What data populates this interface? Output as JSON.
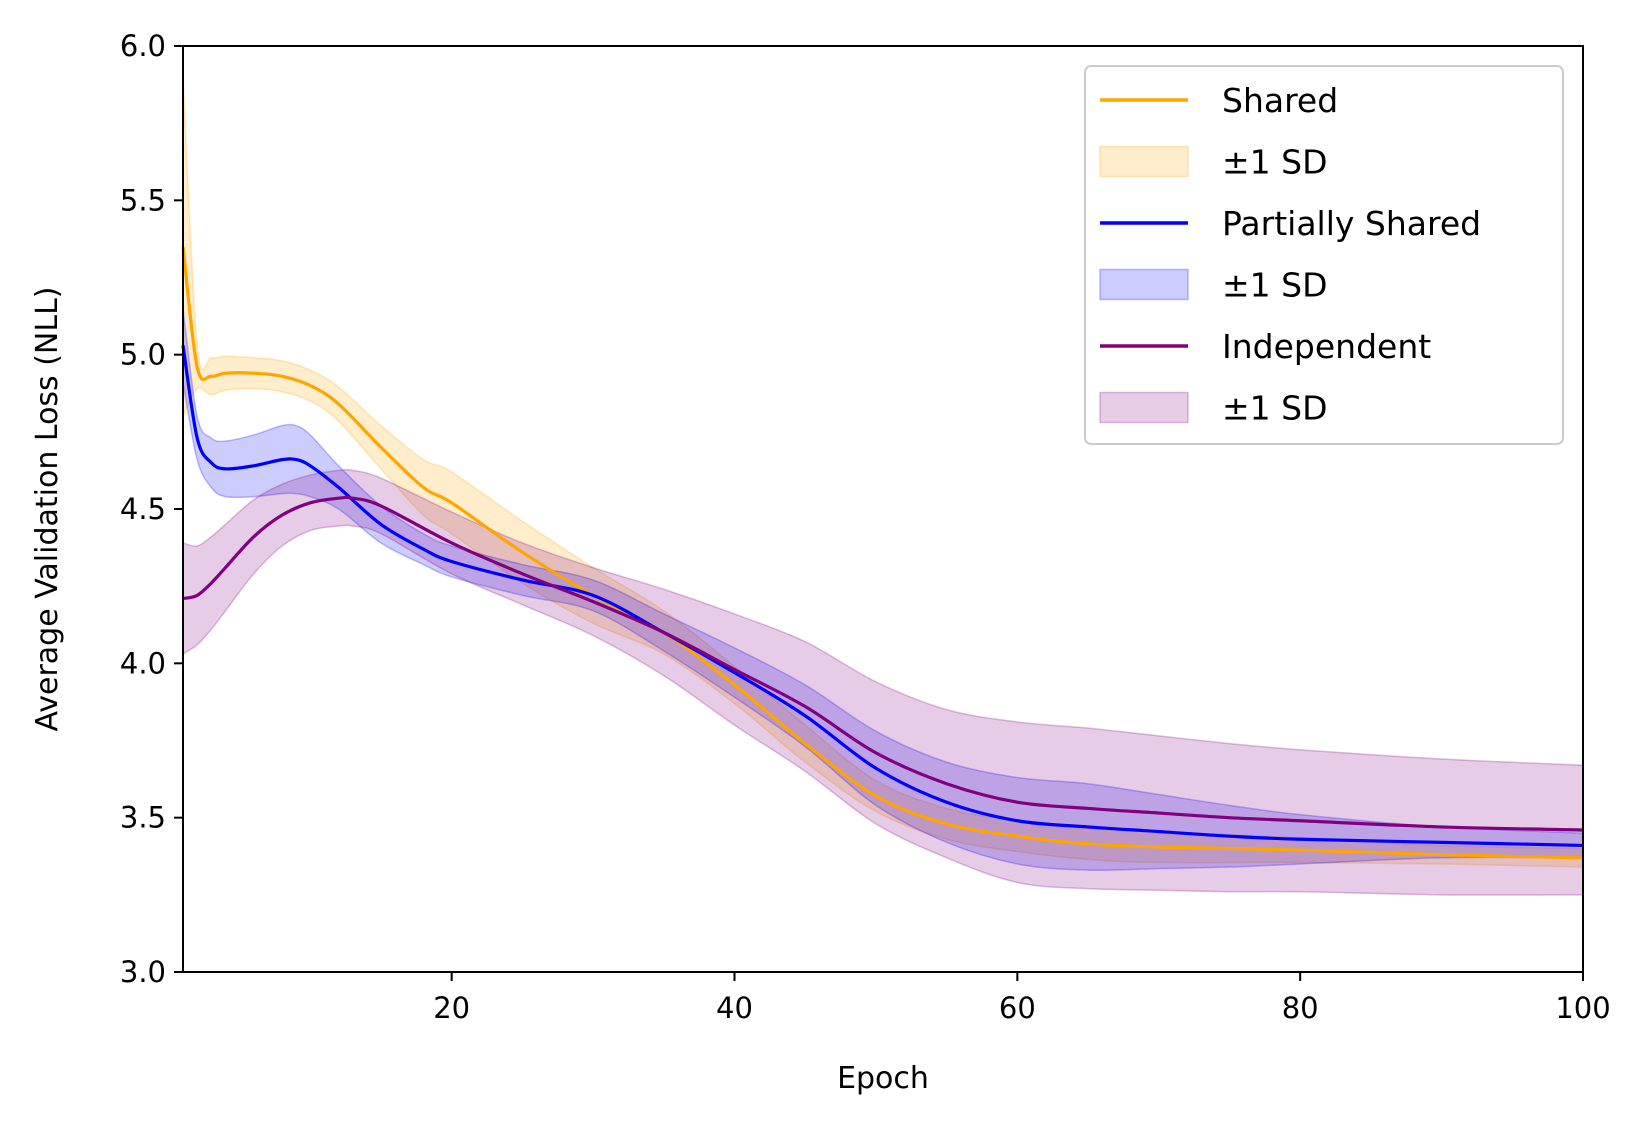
{
  "colors": {
    "shared": "#ffa500",
    "partially_shared": "#0000ff",
    "independent": "#800080"
  },
  "chart_data": {
    "type": "line",
    "xlabel": "Epoch",
    "ylabel": "Average Validation Loss (NLL)",
    "xlim": [
      1,
      100
    ],
    "ylim": [
      3.0,
      6.0
    ],
    "x_ticks": [
      20,
      40,
      60,
      80,
      100
    ],
    "y_ticks": [
      3.0,
      3.5,
      4.0,
      4.5,
      5.0,
      5.5,
      6.0
    ],
    "y_tick_labels": [
      "3.0",
      "3.5",
      "4.0",
      "4.5",
      "5.0",
      "5.5",
      "6.0"
    ],
    "grid": false,
    "legend_position": "top-right",
    "band_label": "±1 SD",
    "series": [
      {
        "key": "shared",
        "name": "Shared",
        "x": [
          1,
          2,
          3,
          4,
          6,
          8,
          10,
          12,
          15,
          18,
          20,
          25,
          30,
          35,
          40,
          45,
          50,
          55,
          60,
          65,
          70,
          80,
          90,
          100
        ],
        "mean": [
          5.35,
          4.96,
          4.93,
          4.94,
          4.94,
          4.93,
          4.9,
          4.84,
          4.7,
          4.57,
          4.52,
          4.36,
          4.22,
          4.1,
          3.93,
          3.74,
          3.57,
          3.48,
          3.44,
          3.415,
          3.405,
          3.395,
          3.38,
          3.37
        ],
        "sd": [
          0.55,
          0.07,
          0.06,
          0.055,
          0.05,
          0.05,
          0.05,
          0.055,
          0.07,
          0.09,
          0.1,
          0.1,
          0.09,
          0.07,
          0.06,
          0.06,
          0.05,
          0.05,
          0.05,
          0.05,
          0.05,
          0.04,
          0.03,
          0.03
        ]
      },
      {
        "key": "partially_shared",
        "name": "Partially Shared",
        "x": [
          1,
          2,
          3,
          4,
          6,
          8,
          9,
          10,
          12,
          15,
          18,
          20,
          25,
          30,
          35,
          40,
          45,
          50,
          55,
          60,
          65,
          70,
          75,
          80,
          90,
          100
        ],
        "mean": [
          5.03,
          4.73,
          4.65,
          4.63,
          4.64,
          4.66,
          4.66,
          4.64,
          4.57,
          4.45,
          4.37,
          4.33,
          4.27,
          4.22,
          4.1,
          3.97,
          3.83,
          3.66,
          3.55,
          3.49,
          3.47,
          3.455,
          3.44,
          3.43,
          3.42,
          3.41
        ],
        "sd": [
          0.12,
          0.07,
          0.08,
          0.09,
          0.1,
          0.11,
          0.11,
          0.1,
          0.07,
          0.06,
          0.05,
          0.05,
          0.05,
          0.05,
          0.06,
          0.08,
          0.1,
          0.12,
          0.13,
          0.14,
          0.14,
          0.12,
          0.1,
          0.08,
          0.05,
          0.04
        ]
      },
      {
        "key": "independent",
        "name": "Independent",
        "x": [
          1,
          2,
          3,
          4,
          6,
          8,
          10,
          12,
          13,
          15,
          20,
          25,
          30,
          35,
          40,
          45,
          50,
          55,
          60,
          65,
          70,
          75,
          80,
          90,
          100
        ],
        "mean": [
          4.21,
          4.22,
          4.26,
          4.31,
          4.41,
          4.48,
          4.52,
          4.535,
          4.535,
          4.51,
          4.39,
          4.29,
          4.2,
          4.1,
          3.98,
          3.86,
          3.71,
          3.61,
          3.55,
          3.53,
          3.515,
          3.5,
          3.49,
          3.47,
          3.46
        ],
        "sd": [
          0.18,
          0.16,
          0.15,
          0.14,
          0.12,
          0.1,
          0.09,
          0.09,
          0.09,
          0.09,
          0.1,
          0.1,
          0.11,
          0.14,
          0.18,
          0.21,
          0.23,
          0.24,
          0.26,
          0.26,
          0.25,
          0.24,
          0.23,
          0.22,
          0.21
        ]
      }
    ]
  }
}
